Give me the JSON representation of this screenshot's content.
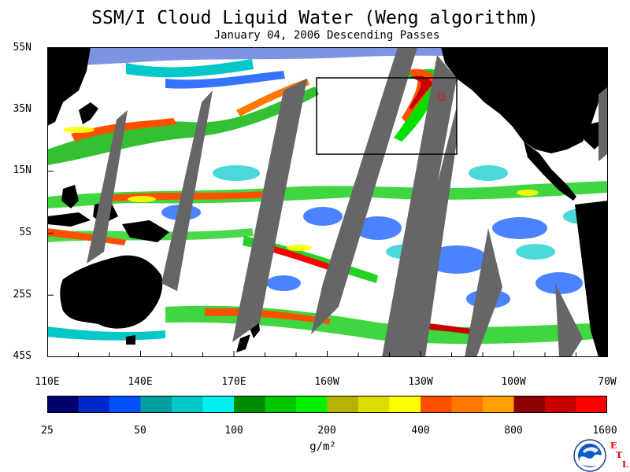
{
  "title": "SSM/I Cloud Liquid Water (Weng algorithm)",
  "subtitle": "January 04, 2006  Descending Passes",
  "lat_labels": [
    "55N",
    "35N",
    "15N",
    "5S",
    "25S",
    "45S"
  ],
  "lon_labels": [
    "110E",
    "140E",
    "170E",
    "160W",
    "130W",
    "100W",
    "70W"
  ],
  "colorbar": {
    "labels": [
      "25",
      "50",
      "100",
      "200",
      "400",
      "800",
      "1600"
    ],
    "units": "g/m²",
    "colors": [
      "#00006e",
      "#0028c8",
      "#0050ff",
      "#00a0a0",
      "#00c8c8",
      "#00f0f0",
      "#008c00",
      "#00c800",
      "#00f000",
      "#b4b400",
      "#dcdc00",
      "#ffff00",
      "#ff5000",
      "#ff7800",
      "#ffa000",
      "#8c0000",
      "#c80000",
      "#ff0000"
    ]
  },
  "colors": {
    "land": "#000000",
    "no_data": "#666666",
    "ocean_clear": "#ffffff",
    "box": "#000000",
    "box_small": "#ff0000"
  },
  "logo": {
    "text": "NOAA",
    "letters": [
      "E",
      "T",
      "L"
    ]
  }
}
